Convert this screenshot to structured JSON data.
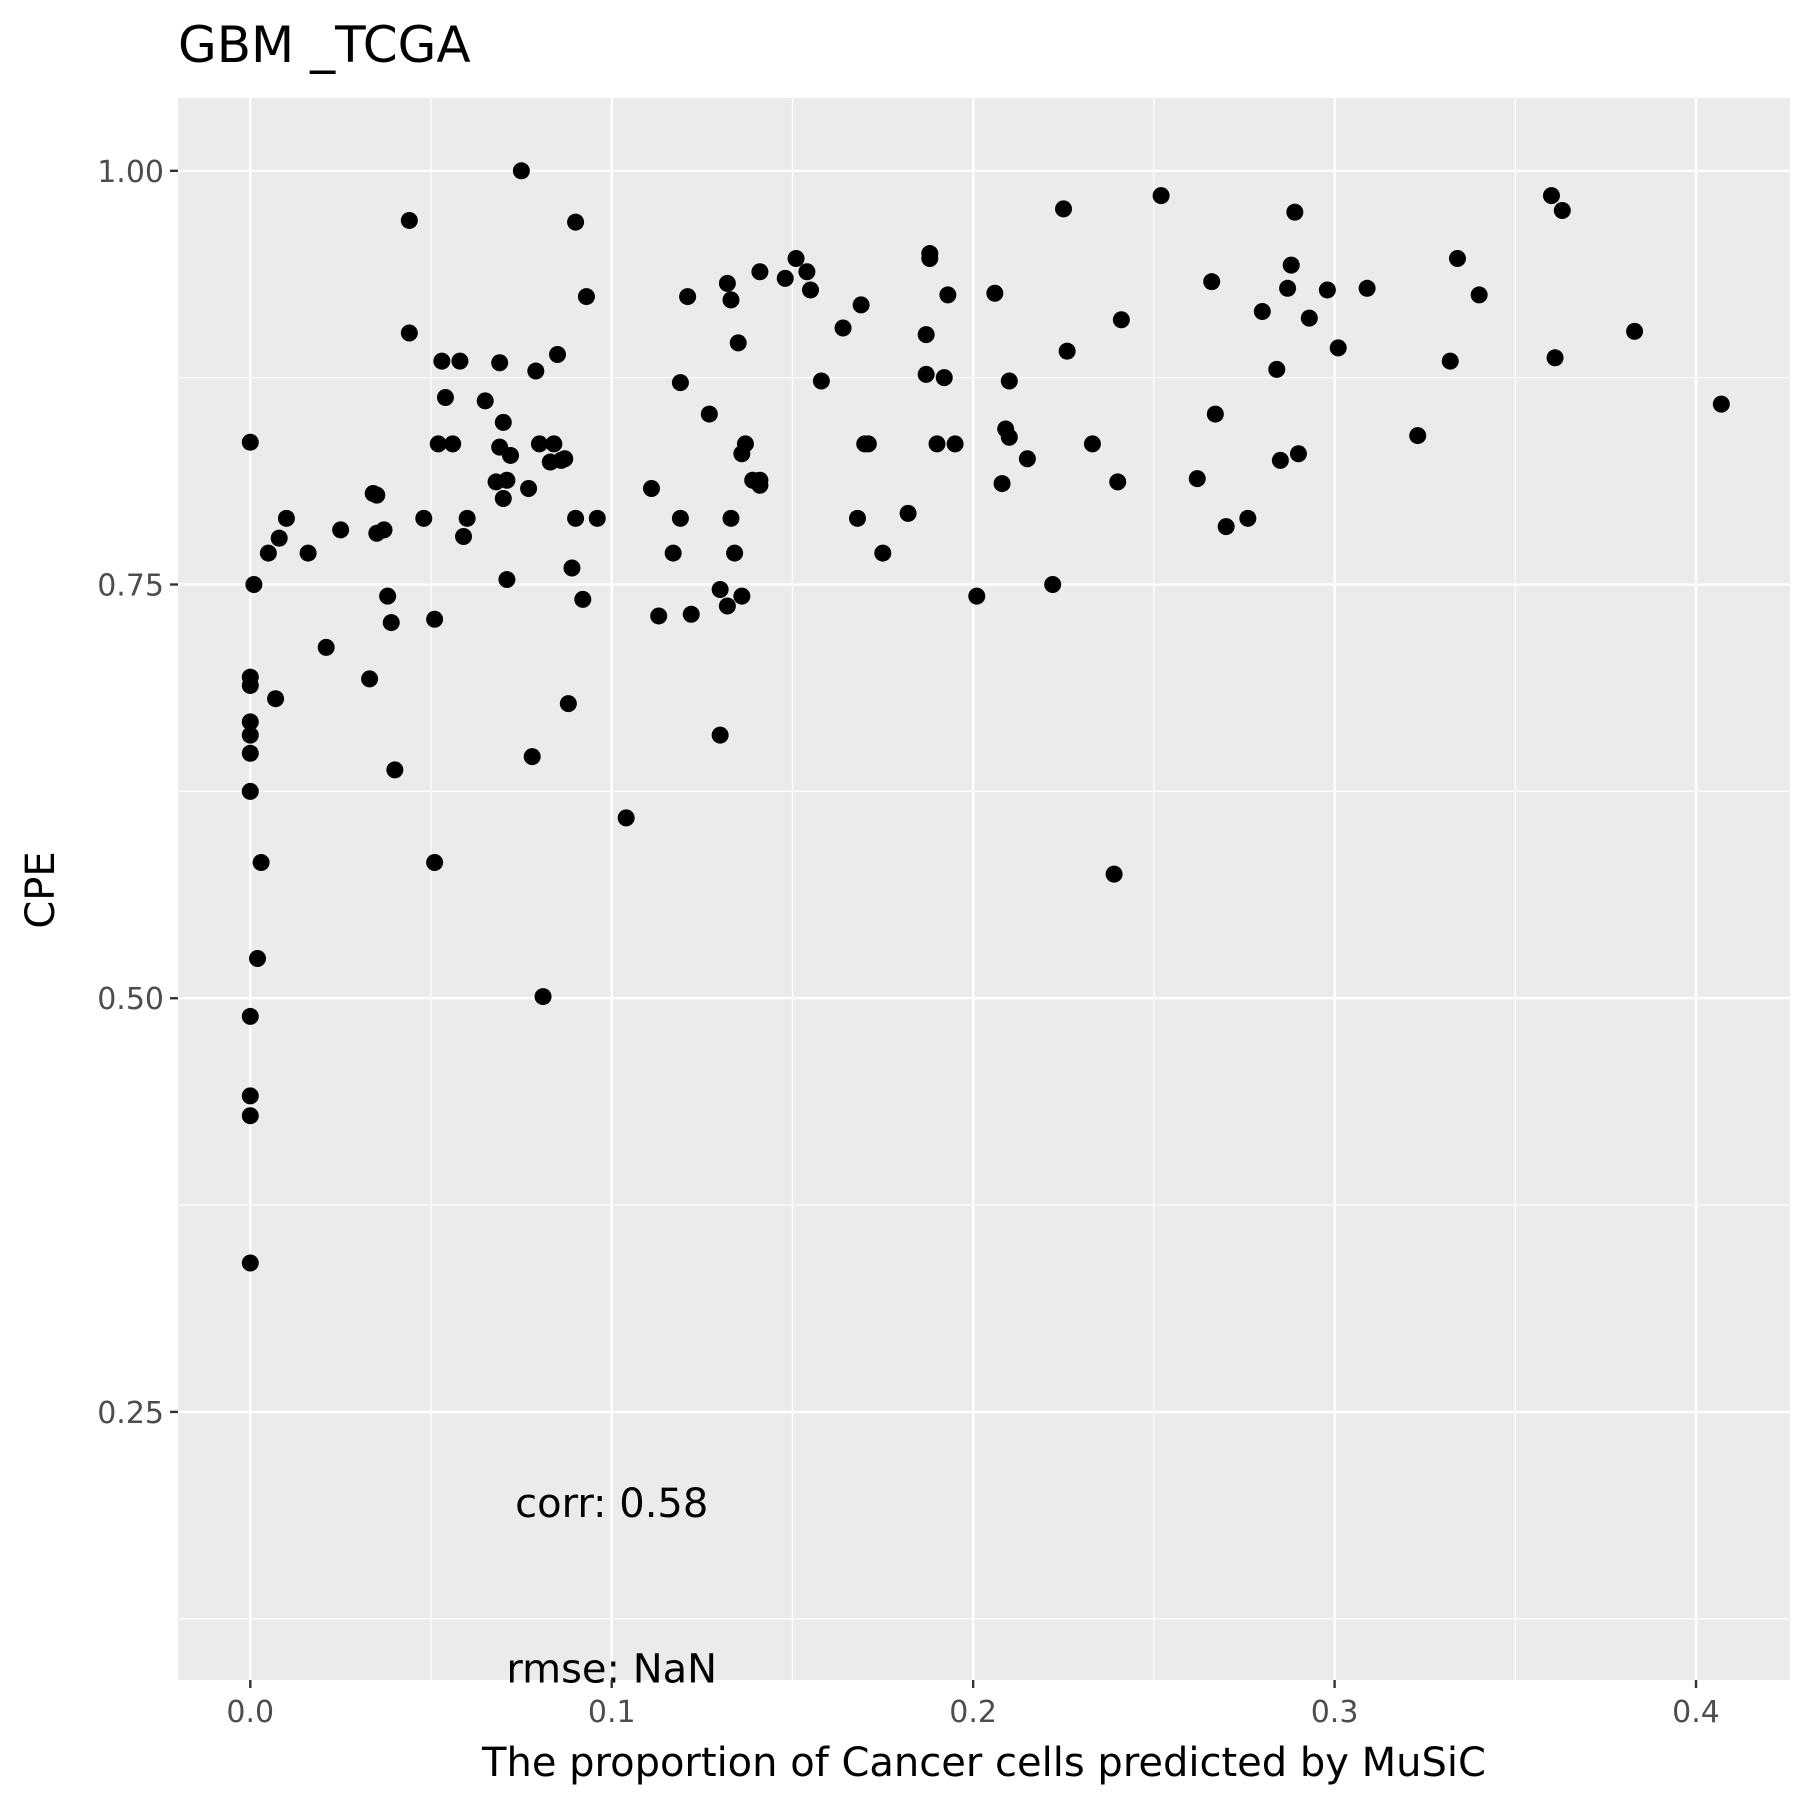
{
  "chart_data": {
    "type": "scatter",
    "title": "GBM _TCGA",
    "xlabel": "The proportion of Cancer cells predicted by MuSiC",
    "ylabel": "CPE",
    "xlim": [
      -0.02,
      0.426
    ],
    "ylim": [
      0.088,
      1.044
    ],
    "x_ticks": [
      0.0,
      0.1,
      0.2,
      0.3,
      0.4
    ],
    "x_tick_labels": [
      "0.0",
      "0.1",
      "0.2",
      "0.3",
      "0.4"
    ],
    "y_ticks": [
      0.25,
      0.5,
      0.75,
      1.0
    ],
    "y_tick_labels": [
      "0.25",
      "0.50",
      "0.75",
      "1.00"
    ],
    "grid": true,
    "background": "#ebebeb",
    "grid_color": "#ffffff",
    "point_color": "#000000",
    "annotations": [
      {
        "text": "corr: 0.58",
        "x": 0.1,
        "y": 0.195
      },
      {
        "text": "rmse: NaN",
        "x": 0.1,
        "y": 0.095
      }
    ],
    "points": [
      [
        0.0,
        0.836
      ],
      [
        0.0,
        0.694
      ],
      [
        0.0,
        0.689
      ],
      [
        0.0,
        0.667
      ],
      [
        0.0,
        0.659
      ],
      [
        0.0,
        0.648
      ],
      [
        0.0,
        0.625
      ],
      [
        0.0,
        0.489
      ],
      [
        0.0,
        0.441
      ],
      [
        0.0,
        0.429
      ],
      [
        0.0,
        0.34
      ],
      [
        0.001,
        0.75
      ],
      [
        0.002,
        0.524
      ],
      [
        0.003,
        0.582
      ],
      [
        0.005,
        0.769
      ],
      [
        0.007,
        0.681
      ],
      [
        0.008,
        0.778
      ],
      [
        0.01,
        0.79
      ],
      [
        0.016,
        0.769
      ],
      [
        0.021,
        0.712
      ],
      [
        0.025,
        0.783
      ],
      [
        0.033,
        0.693
      ],
      [
        0.034,
        0.805
      ],
      [
        0.035,
        0.804
      ],
      [
        0.035,
        0.781
      ],
      [
        0.037,
        0.783
      ],
      [
        0.038,
        0.743
      ],
      [
        0.039,
        0.727
      ],
      [
        0.04,
        0.638
      ],
      [
        0.044,
        0.97
      ],
      [
        0.044,
        0.902
      ],
      [
        0.048,
        0.79
      ],
      [
        0.051,
        0.729
      ],
      [
        0.051,
        0.582
      ],
      [
        0.052,
        0.835
      ],
      [
        0.053,
        0.885
      ],
      [
        0.054,
        0.863
      ],
      [
        0.056,
        0.835
      ],
      [
        0.058,
        0.885
      ],
      [
        0.059,
        0.779
      ],
      [
        0.06,
        0.79
      ],
      [
        0.065,
        0.861
      ],
      [
        0.068,
        0.812
      ],
      [
        0.069,
        0.884
      ],
      [
        0.069,
        0.833
      ],
      [
        0.07,
        0.848
      ],
      [
        0.07,
        0.802
      ],
      [
        0.071,
        0.813
      ],
      [
        0.071,
        0.753
      ],
      [
        0.072,
        0.828
      ],
      [
        0.075,
        1.0
      ],
      [
        0.077,
        0.808
      ],
      [
        0.078,
        0.646
      ],
      [
        0.079,
        0.879
      ],
      [
        0.08,
        0.835
      ],
      [
        0.081,
        0.501
      ],
      [
        0.083,
        0.824
      ],
      [
        0.084,
        0.835
      ],
      [
        0.085,
        0.889
      ],
      [
        0.086,
        0.825
      ],
      [
        0.087,
        0.826
      ],
      [
        0.088,
        0.678
      ],
      [
        0.089,
        0.76
      ],
      [
        0.09,
        0.969
      ],
      [
        0.09,
        0.79
      ],
      [
        0.092,
        0.741
      ],
      [
        0.093,
        0.924
      ],
      [
        0.096,
        0.79
      ],
      [
        0.104,
        0.609
      ],
      [
        0.111,
        0.808
      ],
      [
        0.113,
        0.731
      ],
      [
        0.117,
        0.769
      ],
      [
        0.119,
        0.872
      ],
      [
        0.119,
        0.79
      ],
      [
        0.121,
        0.924
      ],
      [
        0.122,
        0.732
      ],
      [
        0.127,
        0.853
      ],
      [
        0.13,
        0.747
      ],
      [
        0.13,
        0.659
      ],
      [
        0.132,
        0.737
      ],
      [
        0.132,
        0.932
      ],
      [
        0.133,
        0.79
      ],
      [
        0.133,
        0.922
      ],
      [
        0.134,
        0.769
      ],
      [
        0.135,
        0.896
      ],
      [
        0.136,
        0.743
      ],
      [
        0.136,
        0.829
      ],
      [
        0.137,
        0.835
      ],
      [
        0.139,
        0.813
      ],
      [
        0.141,
        0.813
      ],
      [
        0.141,
        0.81
      ],
      [
        0.141,
        0.939
      ],
      [
        0.148,
        0.935
      ],
      [
        0.151,
        0.947
      ],
      [
        0.154,
        0.939
      ],
      [
        0.155,
        0.928
      ],
      [
        0.158,
        0.873
      ],
      [
        0.164,
        0.905
      ],
      [
        0.168,
        0.79
      ],
      [
        0.169,
        0.919
      ],
      [
        0.17,
        0.835
      ],
      [
        0.171,
        0.835
      ],
      [
        0.175,
        0.769
      ],
      [
        0.182,
        0.793
      ],
      [
        0.187,
        0.901
      ],
      [
        0.187,
        0.877
      ],
      [
        0.188,
        0.95
      ],
      [
        0.188,
        0.947
      ],
      [
        0.19,
        0.835
      ],
      [
        0.192,
        0.875
      ],
      [
        0.193,
        0.925
      ],
      [
        0.195,
        0.835
      ],
      [
        0.201,
        0.743
      ],
      [
        0.206,
        0.926
      ],
      [
        0.208,
        0.811
      ],
      [
        0.209,
        0.844
      ],
      [
        0.21,
        0.839
      ],
      [
        0.21,
        0.873
      ],
      [
        0.215,
        0.826
      ],
      [
        0.222,
        0.75
      ],
      [
        0.225,
        0.977
      ],
      [
        0.226,
        0.891
      ],
      [
        0.233,
        0.835
      ],
      [
        0.239,
        0.575
      ],
      [
        0.24,
        0.812
      ],
      [
        0.241,
        0.91
      ],
      [
        0.252,
        0.985
      ],
      [
        0.262,
        0.814
      ],
      [
        0.266,
        0.933
      ],
      [
        0.267,
        0.853
      ],
      [
        0.27,
        0.785
      ],
      [
        0.276,
        0.79
      ],
      [
        0.28,
        0.915
      ],
      [
        0.284,
        0.88
      ],
      [
        0.285,
        0.825
      ],
      [
        0.287,
        0.929
      ],
      [
        0.288,
        0.943
      ],
      [
        0.289,
        0.975
      ],
      [
        0.29,
        0.829
      ],
      [
        0.293,
        0.911
      ],
      [
        0.298,
        0.928
      ],
      [
        0.301,
        0.893
      ],
      [
        0.309,
        0.929
      ],
      [
        0.323,
        0.84
      ],
      [
        0.332,
        0.885
      ],
      [
        0.334,
        0.947
      ],
      [
        0.34,
        0.925
      ],
      [
        0.36,
        0.985
      ],
      [
        0.361,
        0.887
      ],
      [
        0.363,
        0.976
      ],
      [
        0.383,
        0.903
      ],
      [
        0.407,
        0.859
      ]
    ]
  }
}
